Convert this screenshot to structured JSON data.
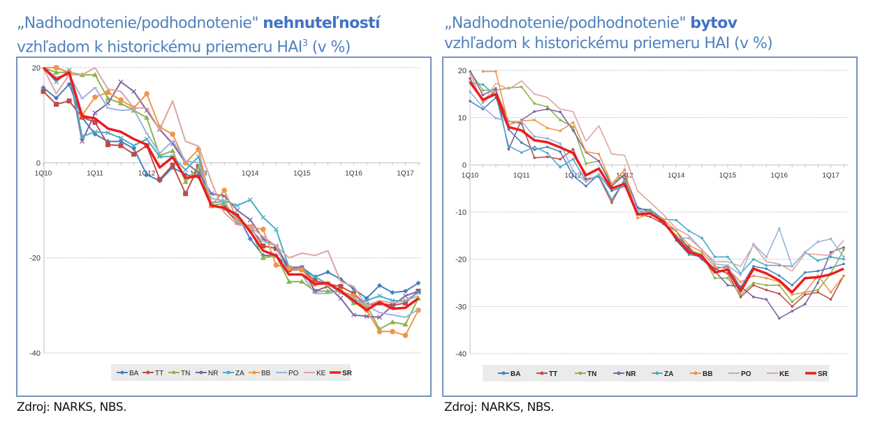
{
  "left": {
    "title_line1_prefix": "„Nadhodnotenie/podhodnotenie\" ",
    "title_line1_bold": "nehnuteľností",
    "title_line2": "vzhľadom k historickému priemeru HAI",
    "title_sup": "3",
    "title_suffix": " (v %)",
    "source": "Zdroj: NARKS, NBS."
  },
  "right": {
    "title_line1_prefix": "„Nadhodnotenie/podhodnotenie\" ",
    "title_line1_bold": "bytov",
    "title_line2": "vzhľadom k historickému priemeru HAI (v %)",
    "source": "Zdroj: NARKS, NBS."
  },
  "colors": {
    "BA": "#4a7ebb",
    "TT": "#be4b48",
    "TN": "#8cb44a",
    "NR": "#7e62a1",
    "ZA": "#4aacc6",
    "BB": "#f0954a",
    "PO": "#9ab3db",
    "KE": "#dba4a2",
    "SR": "#ee1c1c"
  },
  "chart_data": [
    {
      "type": "line",
      "title": "„Nadhodnotenie/podhodnotenie\" nehnuteľností vzhľadom k historickému priemeru HAI (v %)",
      "xlabel": "",
      "ylabel": "",
      "ylim": [
        -40,
        20
      ],
      "yticks": [
        20,
        0,
        -20,
        -40
      ],
      "x_tick_labels": [
        "1Q10",
        "1Q11",
        "1Q12",
        "1Q13",
        "1Q14",
        "1Q15",
        "1Q16",
        "1Q17"
      ],
      "x": [
        "1Q10",
        "2Q10",
        "3Q10",
        "4Q10",
        "1Q11",
        "2Q11",
        "3Q11",
        "4Q11",
        "1Q12",
        "2Q12",
        "3Q12",
        "4Q12",
        "1Q13",
        "2Q13",
        "3Q13",
        "4Q13",
        "1Q14",
        "2Q14",
        "3Q14",
        "4Q14",
        "1Q15",
        "2Q15",
        "3Q15",
        "4Q15",
        "1Q16",
        "2Q16",
        "3Q16",
        "4Q16",
        "1Q17",
        "2Q17"
      ],
      "grid": true,
      "legend": "bottom",
      "markers": true,
      "series": [
        {
          "name": "BA",
          "values": [
            15.8,
            13.6,
            16.5,
            9.5,
            6,
            4.5,
            4.5,
            3,
            -2.5,
            -3.8,
            -1,
            -2.5,
            -3,
            -9,
            -9.5,
            -11,
            -16,
            -19.5,
            -19.5,
            -22,
            -22,
            -24,
            -23,
            -24.5,
            -26.5,
            -28.5,
            -25.8,
            -27.3,
            -27,
            -25.3
          ]
        },
        {
          "name": "TT",
          "values": [
            15,
            12.3,
            13,
            9.6,
            8.5,
            3.8,
            3.6,
            1.8,
            3.6,
            -3.5,
            -0.5,
            -6.5,
            -0.8,
            -9,
            -9.5,
            -12.5,
            -13.5,
            -17.5,
            -18,
            -22.5,
            -22.5,
            -24.8,
            -25.5,
            -26,
            -27.5,
            -30,
            -29.5,
            -30,
            -29.5,
            -27
          ]
        },
        {
          "name": "TN",
          "values": [
            21,
            19,
            19,
            18.5,
            18.5,
            13.5,
            12.5,
            11,
            9.5,
            1.5,
            2.5,
            -4,
            -1,
            -9,
            -8.5,
            -12,
            -14,
            -20,
            -19.5,
            -25,
            -25,
            -27,
            -27,
            -27,
            -29.5,
            -30,
            -35,
            -33.5,
            -34,
            -28.5
          ]
        },
        {
          "name": "NR",
          "values": [
            22,
            20,
            19,
            4.5,
            10.5,
            12.5,
            17,
            15,
            11,
            7,
            4,
            0,
            -2,
            -6.5,
            -7,
            -10,
            -12,
            -16,
            -17.5,
            -22,
            -22,
            -27,
            -26,
            -28.5,
            -32,
            -32.3,
            -32.5,
            -30,
            -28,
            -27
          ]
        },
        {
          "name": "ZA",
          "values": [
            21,
            17,
            19.5,
            5.5,
            6.5,
            6.3,
            5.2,
            3.6,
            5,
            1.3,
            1.3,
            -1.5,
            1.3,
            -8.5,
            -8,
            -9,
            -7.8,
            -11.5,
            -14,
            -22,
            -22.5,
            -24,
            -25.5,
            -27.3,
            -29,
            -29,
            -28,
            -29,
            -29,
            -27.3
          ]
        },
        {
          "name": "BB",
          "values": [
            24,
            20,
            19,
            10,
            13.8,
            14.8,
            13.2,
            11.5,
            14.5,
            7.5,
            6,
            0,
            2.8,
            -9,
            -5.8,
            -12,
            -13.5,
            -14,
            -21.5,
            -22.2,
            -22.5,
            -25.5,
            -25.5,
            -27,
            -28,
            -31,
            -35.5,
            -35.5,
            -36.3,
            -31
          ]
        },
        {
          "name": "PO",
          "values": [
            20,
            18,
            18.5,
            13.5,
            15.8,
            11.5,
            11,
            11.2,
            6.2,
            2,
            4.6,
            0.4,
            0,
            -7.5,
            -8,
            -12.5,
            -14,
            -16.5,
            -17.5,
            -23.5,
            -23.5,
            -27.5,
            -27.5,
            -27,
            -28.5,
            -30,
            -31.5,
            -32,
            -32.5,
            -30.8
          ]
        },
        {
          "name": "KE",
          "values": [
            22,
            14.5,
            18.5,
            18.5,
            20,
            15.5,
            15,
            11.5,
            11.5,
            7,
            13,
            4.5,
            3.5,
            -4,
            -10.5,
            -13,
            -13.5,
            -15.5,
            -17.5,
            -20,
            -19,
            -19.5,
            -18.5,
            -25,
            -26,
            -30,
            -29,
            -29.5,
            -29,
            -28
          ]
        },
        {
          "name": "SR",
          "values": [
            20,
            17.5,
            19,
            9.8,
            9.3,
            7.2,
            6.5,
            5,
            3.8,
            -1,
            1.2,
            -3.2,
            -2.8,
            -9,
            -9.5,
            -11,
            -14.5,
            -18.5,
            -19.5,
            -23.5,
            -23.5,
            -25.5,
            -25.3,
            -27,
            -29,
            -31,
            -29.3,
            -30.7,
            -30.5,
            -28.5
          ]
        }
      ]
    },
    {
      "type": "line",
      "title": "„Nadhodnotenie/podhodnotenie\" bytov vzhľadom k historickému priemeru HAI (v %)",
      "xlabel": "",
      "ylabel": "",
      "ylim": [
        -40,
        20
      ],
      "yticks": [
        20,
        10,
        0,
        -10,
        -20,
        -30,
        -40
      ],
      "x_tick_labels": [
        "1Q10",
        "1Q11",
        "1Q12",
        "1Q13",
        "1Q14",
        "1Q15",
        "1Q16",
        "1Q17"
      ],
      "x": [
        "1Q10",
        "2Q10",
        "3Q10",
        "4Q10",
        "1Q11",
        "2Q11",
        "3Q11",
        "4Q11",
        "1Q12",
        "2Q12",
        "3Q12",
        "4Q12",
        "1Q13",
        "2Q13",
        "3Q13",
        "4Q13",
        "1Q14",
        "2Q14",
        "3Q14",
        "4Q14",
        "1Q15",
        "2Q15",
        "3Q15",
        "4Q15",
        "1Q16",
        "2Q16",
        "3Q16",
        "4Q16",
        "1Q17",
        "2Q17"
      ],
      "grid": true,
      "legend": "bottom",
      "markers": false,
      "series": [
        {
          "name": "BA",
          "values": [
            13.5,
            11.8,
            14.2,
            7.5,
            4.7,
            3.2,
            3.8,
            2.8,
            -2.3,
            -4.5,
            -2,
            -5.5,
            -4.5,
            -9.3,
            -9.5,
            -11.5,
            -16,
            -19,
            -19.5,
            -22,
            -21.5,
            -26,
            -21.5,
            -22,
            -23.5,
            -25.5,
            -22.8,
            -22.5,
            -21.8,
            -21
          ]
        },
        {
          "name": "TT",
          "values": [
            18.3,
            13.2,
            15.8,
            9.2,
            8.8,
            1.5,
            1.7,
            1.2,
            3.3,
            -3,
            -2.5,
            -8,
            -3,
            -10.5,
            -11,
            -12.5,
            -15,
            -17.5,
            -20,
            -22,
            -23,
            -28,
            -25.5,
            -26.5,
            -27.3,
            -30,
            -27.5,
            -27,
            -28.5,
            -23.5
          ]
        },
        {
          "name": "TN",
          "values": [
            19.8,
            15.8,
            15.8,
            16.3,
            16.5,
            13,
            12.3,
            9.5,
            8,
            0.3,
            0.8,
            -4,
            -2,
            -10.5,
            -9.5,
            -12,
            -15,
            -18,
            -19,
            -24,
            -24,
            -27.5,
            -25,
            -25.5,
            -25.5,
            -29,
            -27,
            -26.5,
            -23,
            -18
          ]
        },
        {
          "name": "NR",
          "values": [
            21,
            14.8,
            16.2,
            3.3,
            9.5,
            11.3,
            11.8,
            11.2,
            7.3,
            2.7,
            0.8,
            -4.5,
            -2,
            -9,
            -10,
            -12.5,
            -14,
            -18,
            -20,
            -22.5,
            -25.5,
            -25.8,
            -28,
            -28.5,
            -32.5,
            -31,
            -29.5,
            -25,
            -18.5,
            -17.5
          ]
        },
        {
          "name": "ZA",
          "values": [
            17.5,
            17,
            14.7,
            4,
            2.6,
            3.8,
            2.5,
            -0.5,
            1.2,
            -3.5,
            -2.3,
            -7.3,
            -3.3,
            -10,
            -9.8,
            -11.5,
            -11.7,
            -14,
            -15.5,
            -19.5,
            -19.5,
            -23,
            -20,
            -21.3,
            -21.3,
            -21.5,
            -18.5,
            -20.3,
            -19.5,
            -20
          ]
        },
        {
          "name": "BB",
          "values": [
            null,
            19.8,
            19.8,
            8.5,
            9.3,
            9.5,
            7.8,
            7.2,
            9,
            2.8,
            2.3,
            -4,
            -1,
            -11.3,
            -10.3,
            -11.5,
            -14,
            -17,
            -18.5,
            -21.5,
            -22,
            -24.8,
            -23.5,
            -24,
            -24.8,
            -27.5,
            -27,
            -23.5,
            -27,
            -23.5
          ]
        },
        {
          "name": "PO",
          "values": [
            15.5,
            12.2,
            9.9,
            9.2,
            9.2,
            6,
            5.6,
            4.5,
            -1.3,
            -3.5,
            -2,
            -5,
            -4,
            -9.5,
            -10.3,
            -12,
            -15.5,
            -15.5,
            -18,
            -21,
            -21.3,
            -23.3,
            -16.8,
            -19.5,
            -13.5,
            -21.5,
            -18.5,
            -16.3,
            -15.7,
            -19.5
          ]
        },
        {
          "name": "KE",
          "values": [
            19.5,
            13,
            17.3,
            16,
            17.8,
            15,
            14.3,
            11.8,
            11.3,
            5,
            8.3,
            2.3,
            2,
            -5.5,
            -8,
            -10.5,
            -13.5,
            -15,
            -18,
            -20.5,
            -20.5,
            -21.5,
            -17,
            -20.5,
            -21,
            -22.5,
            -18.8,
            -19,
            -19.2,
            -16
          ]
        },
        {
          "name": "SR",
          "values": [
            17.5,
            13.8,
            15,
            8,
            7.3,
            5.2,
            4.8,
            3.7,
            2.5,
            -2.2,
            -0.8,
            -5,
            -4,
            -10.5,
            -10.3,
            -12,
            -15.5,
            -18.5,
            -19.3,
            -22.8,
            -22.2,
            -26.8,
            -22,
            -23,
            -24.5,
            -27,
            -24,
            -23.8,
            -23.2,
            -22
          ]
        }
      ]
    }
  ]
}
